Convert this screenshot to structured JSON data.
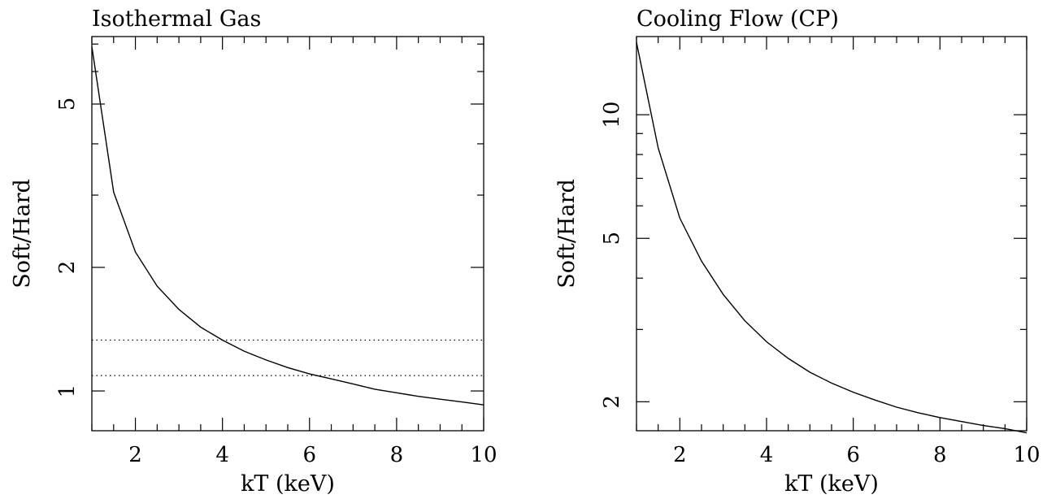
{
  "chart_data": [
    {
      "type": "line",
      "title": "Isothermal Gas",
      "xlabel": "kT (keV)",
      "ylabel": "Soft/Hard",
      "xlim": [
        1,
        10
      ],
      "ylim": [
        0.8,
        7.3
      ],
      "yscale": "log",
      "x_ticks": [
        2,
        4,
        6,
        8,
        10
      ],
      "y_ticks": [
        1,
        2,
        5
      ],
      "y_minor_ticks": [
        3,
        4,
        6,
        7
      ],
      "grid": false,
      "series": [
        {
          "x": [
            1.0,
            1.5,
            2.0,
            2.5,
            3.0,
            3.5,
            4.0,
            4.5,
            5.0,
            5.5,
            6.0,
            6.5,
            7.0,
            7.5,
            8.0,
            8.5,
            9.0,
            9.5,
            10.0
          ],
          "values": [
            6.9,
            3.05,
            2.18,
            1.8,
            1.58,
            1.43,
            1.33,
            1.25,
            1.19,
            1.14,
            1.1,
            1.07,
            1.04,
            1.01,
            0.99,
            0.97,
            0.955,
            0.94,
            0.925
          ]
        }
      ],
      "reference_lines": [
        1.33,
        1.09
      ]
    },
    {
      "type": "line",
      "title": "Cooling Flow (CP)",
      "xlabel": "kT (keV)",
      "ylabel": "Soft/Hard",
      "xlim": [
        1,
        10
      ],
      "ylim": [
        1.7,
        15.5
      ],
      "yscale": "log",
      "x_ticks": [
        2,
        4,
        6,
        8,
        10
      ],
      "y_ticks": [
        2,
        5,
        10
      ],
      "y_minor_ticks": [
        3,
        4,
        6,
        7,
        8,
        9
      ],
      "grid": false,
      "series": [
        {
          "x": [
            1.0,
            1.5,
            2.0,
            2.5,
            3.0,
            3.5,
            4.0,
            4.5,
            5.0,
            5.5,
            6.0,
            6.5,
            7.0,
            7.5,
            8.0,
            8.5,
            9.0,
            9.5,
            10.0
          ],
          "values": [
            15.0,
            8.3,
            5.6,
            4.4,
            3.65,
            3.15,
            2.8,
            2.55,
            2.36,
            2.22,
            2.11,
            2.02,
            1.94,
            1.88,
            1.83,
            1.79,
            1.75,
            1.72,
            1.68
          ]
        }
      ]
    }
  ]
}
